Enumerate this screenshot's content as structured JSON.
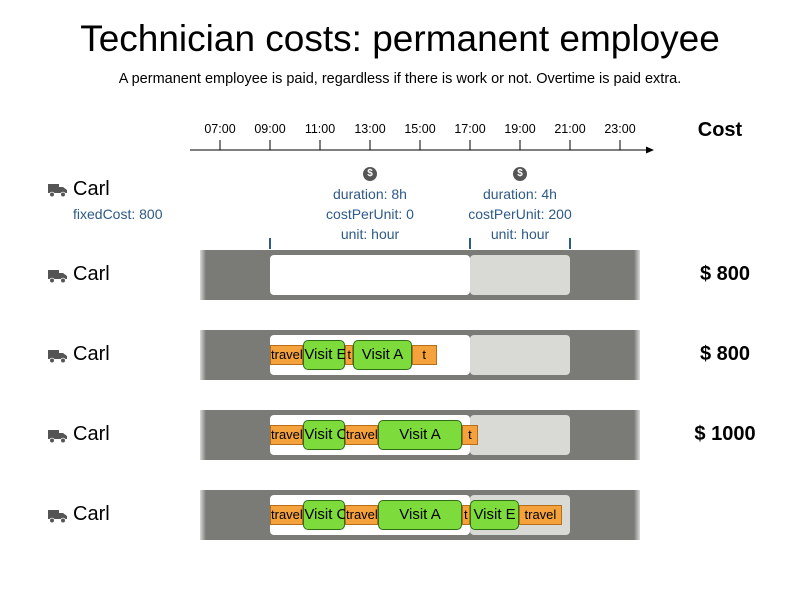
{
  "title": "Technician costs: permanent employee",
  "subtitle": "A permanent employee is paid, regardless if there is work or not. Overtime is paid extra.",
  "cost_header": "Cost",
  "timeline": {
    "ticks": [
      "07:00",
      "09:00",
      "11:00",
      "13:00",
      "15:00",
      "17:00",
      "19:00",
      "21:00",
      "23:00"
    ]
  },
  "icons": {
    "vehicle": "truck-icon",
    "coin": "dollar-coin-icon"
  },
  "colors": {
    "travel": "#f6a23c",
    "visit": "#7ddc3c",
    "shift": "#ffffff",
    "overtime": "#d9dad5",
    "lane": "#7a7a77",
    "info_text": "#2e5a88"
  },
  "definition": {
    "name": "Carl",
    "fixed_cost": "fixedCost: 800",
    "regular": {
      "coin": "$",
      "duration": "duration: 8h",
      "cost_per_unit": "costPerUnit: 0",
      "unit": "unit: hour"
    },
    "overtime": {
      "coin": "$",
      "duration": "duration: 4h",
      "cost_per_unit": "costPerUnit: 200",
      "unit": "unit: hour"
    }
  },
  "rows": [
    {
      "name": "Carl",
      "cost": "$ 800",
      "segments": []
    },
    {
      "name": "Carl",
      "cost": "$ 800",
      "segments": [
        {
          "kind": "travel",
          "label": "travel",
          "start": "09:00",
          "end": "10:20"
        },
        {
          "kind": "visit",
          "label": "Visit E",
          "start": "10:20",
          "end": "12:00"
        },
        {
          "kind": "travel",
          "label": "t",
          "start": "12:00",
          "end": "12:20"
        },
        {
          "kind": "visit",
          "label": "Visit A",
          "start": "12:20",
          "end": "14:40"
        },
        {
          "kind": "travel",
          "label": "t",
          "start": "14:40",
          "end": "15:40"
        }
      ]
    },
    {
      "name": "Carl",
      "cost": "$ 1000",
      "segments": [
        {
          "kind": "travel",
          "label": "travel",
          "start": "09:00",
          "end": "10:20"
        },
        {
          "kind": "visit",
          "label": "Visit C",
          "start": "10:20",
          "end": "12:00"
        },
        {
          "kind": "travel",
          "label": "travel",
          "start": "12:00",
          "end": "13:20"
        },
        {
          "kind": "visit",
          "label": "Visit A",
          "start": "13:20",
          "end": "16:40"
        },
        {
          "kind": "travel",
          "label": "t",
          "start": "16:40",
          "end": "17:20"
        }
      ]
    },
    {
      "name": "Carl",
      "cost": "",
      "segments": [
        {
          "kind": "travel",
          "label": "travel",
          "start": "09:00",
          "end": "10:20"
        },
        {
          "kind": "visit",
          "label": "Visit C",
          "start": "10:20",
          "end": "12:00"
        },
        {
          "kind": "travel",
          "label": "travel",
          "start": "12:00",
          "end": "13:20"
        },
        {
          "kind": "visit",
          "label": "Visit A",
          "start": "13:20",
          "end": "16:40"
        },
        {
          "kind": "travel",
          "label": "t",
          "start": "16:40",
          "end": "17:00"
        },
        {
          "kind": "visit",
          "label": "Visit E",
          "start": "17:00",
          "end": "18:58"
        },
        {
          "kind": "travel",
          "label": "travel",
          "start": "18:58",
          "end": "20:40"
        }
      ]
    }
  ]
}
